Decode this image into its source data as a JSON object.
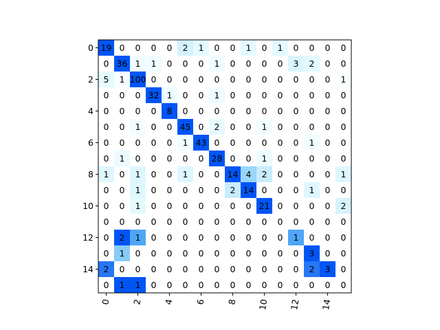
{
  "chart_data": {
    "type": "heatmap",
    "title": "",
    "xlabel": "",
    "ylabel": "",
    "x_tick_values": [
      0,
      2,
      4,
      6,
      8,
      10,
      12,
      14
    ],
    "y_tick_values": [
      0,
      2,
      4,
      6,
      8,
      10,
      12,
      14
    ],
    "x_tick_rotation_deg": 80,
    "colormap_note": "per-row normalized: 0 = white, row max = blue #0055f5, intermediate light cyan to sky blue",
    "matrix": [
      [
        19,
        0,
        0,
        0,
        0,
        2,
        1,
        0,
        0,
        1,
        0,
        1,
        0,
        0,
        0,
        0
      ],
      [
        0,
        36,
        1,
        1,
        0,
        0,
        0,
        1,
        0,
        0,
        0,
        0,
        3,
        2,
        0,
        0
      ],
      [
        5,
        1,
        100,
        0,
        0,
        0,
        0,
        0,
        0,
        0,
        0,
        0,
        0,
        0,
        0,
        1
      ],
      [
        0,
        0,
        0,
        32,
        1,
        0,
        0,
        1,
        0,
        0,
        0,
        0,
        0,
        0,
        0,
        0
      ],
      [
        0,
        0,
        0,
        0,
        8,
        0,
        0,
        0,
        0,
        0,
        0,
        0,
        0,
        0,
        0,
        0
      ],
      [
        0,
        0,
        1,
        0,
        0,
        45,
        0,
        2,
        0,
        0,
        1,
        0,
        0,
        0,
        0,
        0
      ],
      [
        0,
        0,
        0,
        0,
        0,
        1,
        43,
        0,
        0,
        0,
        0,
        0,
        0,
        1,
        0,
        0
      ],
      [
        0,
        1,
        0,
        0,
        0,
        0,
        0,
        28,
        0,
        0,
        1,
        0,
        0,
        0,
        0,
        0
      ],
      [
        1,
        0,
        1,
        0,
        0,
        1,
        0,
        0,
        14,
        4,
        2,
        0,
        0,
        0,
        0,
        1
      ],
      [
        0,
        0,
        1,
        0,
        0,
        0,
        0,
        0,
        2,
        14,
        0,
        0,
        0,
        1,
        0,
        0
      ],
      [
        0,
        0,
        1,
        0,
        0,
        0,
        0,
        0,
        0,
        0,
        21,
        0,
        0,
        0,
        0,
        2
      ],
      [
        0,
        0,
        0,
        0,
        0,
        0,
        0,
        0,
        0,
        0,
        0,
        0,
        0,
        0,
        0,
        0
      ],
      [
        0,
        2,
        1,
        0,
        0,
        0,
        0,
        0,
        0,
        0,
        0,
        0,
        1,
        0,
        0,
        0
      ],
      [
        0,
        1,
        0,
        0,
        0,
        0,
        0,
        0,
        0,
        0,
        0,
        0,
        0,
        3,
        0,
        0
      ],
      [
        2,
        0,
        0,
        0,
        0,
        0,
        0,
        0,
        0,
        0,
        0,
        0,
        0,
        2,
        3,
        0
      ],
      [
        0,
        1,
        1,
        0,
        0,
        0,
        0,
        0,
        0,
        0,
        0,
        0,
        0,
        0,
        0,
        0
      ]
    ],
    "grid": false,
    "legend": "none"
  }
}
